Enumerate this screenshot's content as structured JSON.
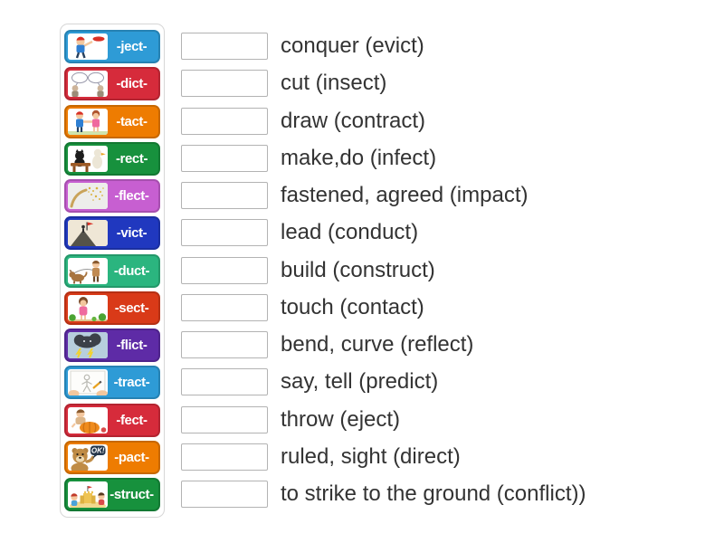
{
  "exercise": {
    "kind": "match-up",
    "text_color": "#333333",
    "panel_border_color": "#d6d6d6",
    "slot_border_color": "#b3b3b3",
    "tiles": [
      {
        "root": "-ject-",
        "color": "#2E9BD6",
        "icon": "frisbee-throw-icon"
      },
      {
        "root": "-dict-",
        "color": "#D62B3B",
        "icon": "speech-bubbles-icon"
      },
      {
        "root": "-tact-",
        "color": "#EE7C01",
        "icon": "handshake-kids-icon"
      },
      {
        "root": "-rect-",
        "color": "#17913D",
        "icon": "cat-desk-icon"
      },
      {
        "root": "-flect-",
        "color": "#C75FD1",
        "icon": "magic-wand-icon"
      },
      {
        "root": "-vict-",
        "color": "#2038BF",
        "icon": "summit-flag-icon"
      },
      {
        "root": "-duct-",
        "color": "#2BB57F",
        "icon": "dog-walk-icon"
      },
      {
        "root": "-sect-",
        "color": "#D93A18",
        "icon": "garden-girl-icon"
      },
      {
        "root": "-flict-",
        "color": "#5E2BA6",
        "icon": "storm-cloud-icon"
      },
      {
        "root": "-tract-",
        "color": "#2E9BD6",
        "icon": "drawing-hands-icon"
      },
      {
        "root": "-fect-",
        "color": "#D62B3B",
        "icon": "pumpkin-kid-icon"
      },
      {
        "root": "-pact-",
        "color": "#EE7C01",
        "icon": "ok-bear-icon"
      },
      {
        "root": "-struct-",
        "color": "#17913D",
        "icon": "sandcastle-kids-icon"
      }
    ],
    "pact_bubble_text": "OK!",
    "definitions": [
      "conquer (evict)",
      "cut (insect)",
      "draw (contract)",
      "make,do (infect)",
      "fastened, agreed (impact)",
      "lead (conduct)",
      "build (construct)",
      "touch (contact)",
      "bend, curve (reflect)",
      "say, tell (predict)",
      "throw (eject)",
      "ruled, sight (direct)",
      "to strike to the ground (conflict))"
    ]
  }
}
